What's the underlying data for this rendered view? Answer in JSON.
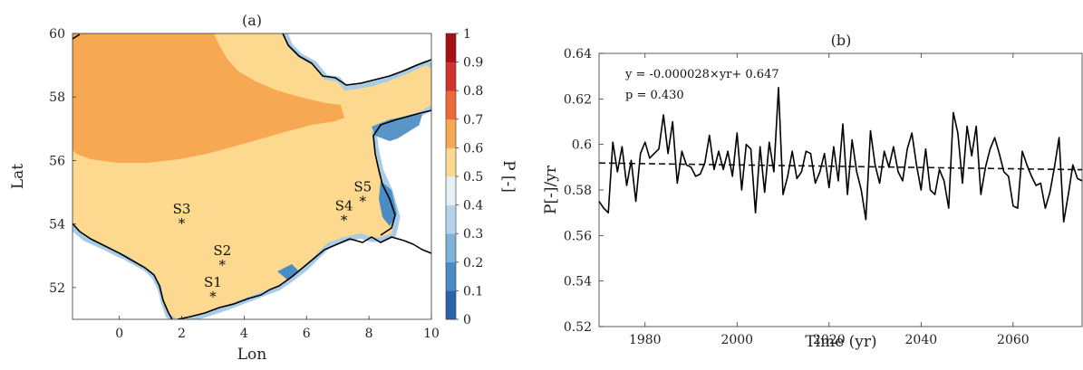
{
  "chart_data": [
    {
      "type": "heatmap",
      "title": "(a)",
      "xlabel": "Lon",
      "ylabel": "Lat",
      "xlim": [
        -1.5,
        10
      ],
      "ylim": [
        51,
        60
      ],
      "xticks": [
        0,
        2,
        4,
        6,
        8,
        10
      ],
      "yticks": [
        52,
        54,
        56,
        58,
        60
      ],
      "colorbar": {
        "label": "P [-]",
        "ticks": [
          "0",
          "0.1",
          "0.2",
          "0.3",
          "0.4",
          "0.5",
          "0.6",
          "0.7",
          "0.8",
          "0.9",
          "1"
        ],
        "colors": [
          "#2a2f8a",
          "#2c62a8",
          "#4a8cc6",
          "#7fb2d9",
          "#b5d4ea",
          "#e6f0f6",
          "#fcd98f",
          "#f7a852",
          "#ef6a3a",
          "#d2322d",
          "#a50f15"
        ]
      },
      "stations": [
        {
          "name": "S1",
          "lon": 3.0,
          "lat": 51.8
        },
        {
          "name": "S2",
          "lon": 3.3,
          "lat": 52.8
        },
        {
          "name": "S3",
          "lon": 2.0,
          "lat": 54.1
        },
        {
          "name": "S4",
          "lon": 7.2,
          "lat": 54.2
        },
        {
          "name": "S5",
          "lon": 7.8,
          "lat": 54.8
        }
      ]
    },
    {
      "type": "line",
      "title": "(b)",
      "xlabel": "Time (yr)",
      "ylabel": "P[-]/yr",
      "xlim": [
        1970,
        2075
      ],
      "ylim": [
        0.52,
        0.64
      ],
      "xticks": [
        1980,
        2000,
        2020,
        2040,
        2060
      ],
      "yticks": [
        "0.52",
        "0.54",
        "0.56",
        "0.58",
        "0.6",
        "0.62",
        "0.64"
      ],
      "annotations": [
        "y = -0.000028×yr+ 0.647",
        "p = 0.430"
      ],
      "trend": {
        "slope": -2.8e-05,
        "intercept": 0.647
      },
      "series": [
        {
          "x_start": 1970,
          "values": [
            0.575,
            0.572,
            0.57,
            0.601,
            0.588,
            0.599,
            0.582,
            0.593,
            0.575,
            0.596,
            0.601,
            0.594,
            0.596,
            0.598,
            0.613,
            0.596,
            0.61,
            0.583,
            0.597,
            0.591,
            0.59,
            0.586,
            0.587,
            0.592,
            0.604,
            0.589,
            0.597,
            0.589,
            0.597,
            0.586,
            0.605,
            0.58,
            0.6,
            0.598,
            0.57,
            0.599,
            0.579,
            0.601,
            0.588,
            0.625,
            0.578,
            0.586,
            0.597,
            0.585,
            0.588,
            0.597,
            0.596,
            0.583,
            0.588,
            0.596,
            0.581,
            0.599,
            0.584,
            0.609,
            0.578,
            0.602,
            0.588,
            0.58,
            0.567,
            0.606,
            0.591,
            0.583,
            0.597,
            0.59,
            0.599,
            0.588,
            0.584,
            0.598,
            0.605,
            0.591,
            0.58,
            0.598,
            0.58,
            0.578,
            0.589,
            0.584,
            0.572,
            0.614,
            0.605,
            0.583,
            0.608,
            0.595,
            0.608,
            0.578,
            0.59,
            0.598,
            0.603,
            0.596,
            0.588,
            0.586,
            0.573,
            0.572,
            0.597,
            0.591,
            0.586,
            0.582,
            0.583,
            0.572,
            0.579,
            0.59,
            0.603,
            0.566,
            0.578,
            0.591,
            0.585,
            0.584
          ]
        }
      ]
    }
  ]
}
